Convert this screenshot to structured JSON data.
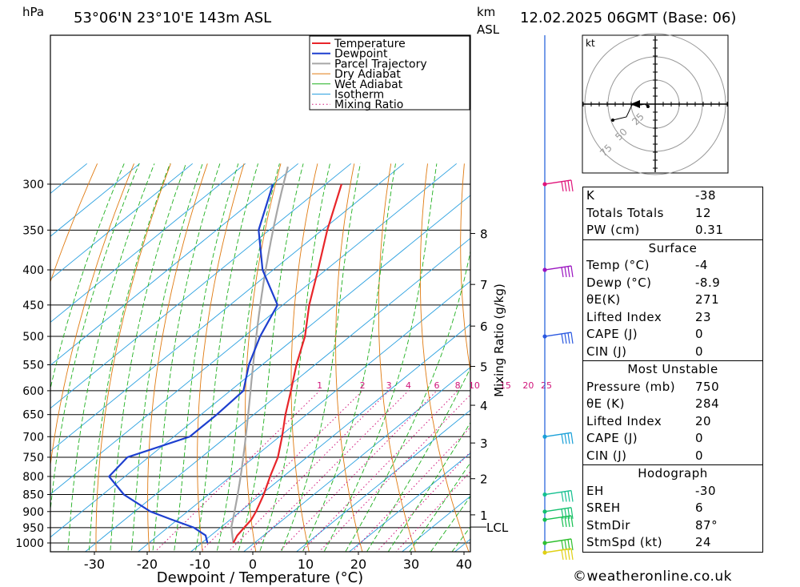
{
  "header": {
    "location": "53°06'N  23°10'E  143m  ASL",
    "datetime": "12.02.2025  06GMT  (Base: 06)",
    "p_unit": "hPa",
    "km_unit": "km",
    "km_unit2": "ASL"
  },
  "chart_data": {
    "type": "line",
    "xlabel": "Dewpoint / Temperature (°C)",
    "mixing_label": "Mixing Ratio (g/kg)",
    "x_ticks": [
      -30,
      -20,
      -10,
      0,
      10,
      20,
      30,
      40
    ],
    "x_tick_labels": [
      "-30",
      "-20",
      "-10",
      "0",
      "10",
      "20",
      "30",
      "40"
    ],
    "p_ticks": [
      300,
      350,
      400,
      450,
      500,
      550,
      600,
      650,
      700,
      750,
      800,
      850,
      900,
      950,
      1000
    ],
    "p_tick_labels": [
      "300",
      "350",
      "400",
      "450",
      "500",
      "550",
      "600",
      "650",
      "700",
      "750",
      "800",
      "850",
      "900",
      "950",
      "1000"
    ],
    "km_ticks": [
      1,
      2,
      3,
      4,
      5,
      6,
      7,
      8
    ],
    "km_tick_labels": [
      "1",
      "2",
      "3",
      "4",
      "5",
      "6",
      "7",
      "8"
    ],
    "km_pressures": [
      910,
      806,
      715,
      630,
      553,
      483,
      420,
      354
    ],
    "lcl_label": "LCL",
    "lcl_pressure": 948,
    "mixing_ratios": [
      1,
      2,
      3,
      4,
      6,
      8,
      10,
      15,
      20,
      25
    ],
    "mixing_ratio_labels": [
      "1",
      "2",
      "3",
      "4",
      "6",
      "8",
      "10",
      "15",
      "20",
      "25"
    ],
    "temperature": {
      "name": "Temperature",
      "p": [
        1000,
        975,
        950,
        925,
        900,
        850,
        800,
        750,
        700,
        650,
        600,
        550,
        500,
        450,
        400,
        350,
        300
      ],
      "t": [
        -4,
        -5,
        -5.5,
        -6,
        -7,
        -9.5,
        -12.5,
        -15.5,
        -19.5,
        -24,
        -28.5,
        -33.5,
        -38.5,
        -45,
        -51.5,
        -59,
        -67
      ]
    },
    "dewpoint": {
      "name": "Dewpoint",
      "p": [
        1000,
        975,
        950,
        925,
        900,
        850,
        800,
        750,
        700,
        650,
        600,
        550,
        500,
        450,
        400,
        350,
        300
      ],
      "t": [
        -8.9,
        -11,
        -15,
        -21,
        -27,
        -36,
        -43,
        -44,
        -37,
        -37,
        -37.5,
        -42.5,
        -47,
        -51,
        -62,
        -72,
        -80
      ]
    },
    "legend": [
      "Temperature",
      "Dewpoint",
      "Parcel Trajectory",
      "Dry Adiabat",
      "Wet Adiabat",
      "Isotherm",
      "Mixing Ratio"
    ],
    "legend_position": "top-right",
    "colors": {
      "temperature": "#e8252a",
      "dewpoint": "#1d3fcf",
      "parcel": "#a6a6a6",
      "dry_adiabat": "#e07a10",
      "wet_adiabat": "#1fb01f",
      "isotherm": "#2aa0e0",
      "mixing_ratio": "#d0147a"
    }
  },
  "wind_barbs": [
    {
      "p": 300,
      "color": "#e0147a"
    },
    {
      "p": 400,
      "color": "#9a14c0"
    },
    {
      "p": 500,
      "color": "#2a58e0"
    },
    {
      "p": 700,
      "color": "#1aa0d8"
    },
    {
      "p": 850,
      "color": "#14c090"
    },
    {
      "p": 900,
      "color": "#14c070"
    },
    {
      "p": 925,
      "color": "#14c050"
    },
    {
      "p": 1000,
      "color": "#30c030"
    },
    {
      "p": 1015,
      "color": "#e0d014"
    }
  ],
  "hodograph": {
    "unit": "kt",
    "ring_labels": [
      "25",
      "50",
      "75"
    ]
  },
  "indices": {
    "top": [
      {
        "k": "K",
        "v": "-38"
      },
      {
        "k": "Totals Totals",
        "v": "12"
      },
      {
        "k": "PW (cm)",
        "v": "0.31"
      }
    ],
    "surface_title": "Surface",
    "surface": [
      {
        "k": "Temp (°C)",
        "v": "-4"
      },
      {
        "k": "Dewp (°C)",
        "v": "-8.9"
      },
      {
        "k": "θE(K)",
        "v": "271"
      },
      {
        "k": "Lifted Index",
        "v": "23"
      },
      {
        "k": "CAPE (J)",
        "v": "0"
      },
      {
        "k": "CIN (J)",
        "v": "0"
      }
    ],
    "mu_title": "Most Unstable",
    "mu": [
      {
        "k": "Pressure (mb)",
        "v": "750"
      },
      {
        "k": "θE (K)",
        "v": "284"
      },
      {
        "k": "Lifted Index",
        "v": "20"
      },
      {
        "k": "CAPE (J)",
        "v": "0"
      },
      {
        "k": "CIN (J)",
        "v": "0"
      }
    ],
    "hodo_title": "Hodograph",
    "hodo": [
      {
        "k": "EH",
        "v": "-30"
      },
      {
        "k": "SREH",
        "v": "6"
      },
      {
        "k": "StmDir",
        "v": "87°"
      },
      {
        "k": "StmSpd (kt)",
        "v": "24"
      }
    ]
  },
  "credit": "©weatheronline.co.uk"
}
